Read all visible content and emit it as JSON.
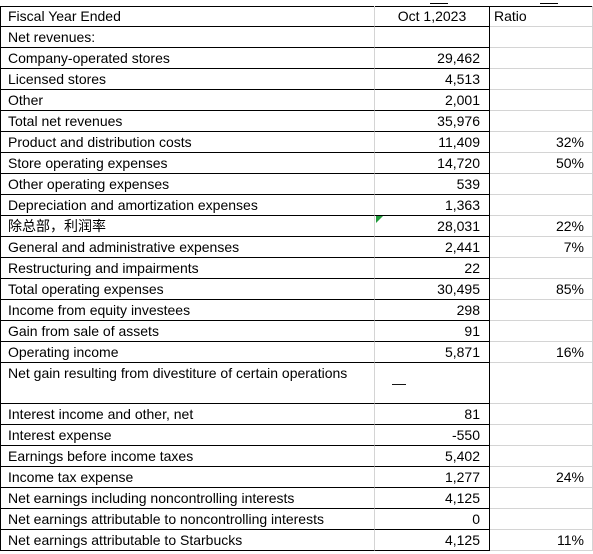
{
  "header": {
    "label": "Fiscal Year Ended",
    "period": "Oct 1,2023",
    "ratio": "Ratio"
  },
  "rows": [
    {
      "label": "Net revenues:",
      "value": "",
      "ratio": ""
    },
    {
      "label": "Company-operated stores",
      "value": "29,462",
      "ratio": ""
    },
    {
      "label": "Licensed stores",
      "value": "4,513",
      "ratio": ""
    },
    {
      "label": "Other",
      "value": "2,001",
      "ratio": ""
    },
    {
      "label": "Total net revenues",
      "value": "35,976",
      "ratio": ""
    },
    {
      "label": "Product and distribution costs",
      "value": "11,409",
      "ratio": "32%"
    },
    {
      "label": "Store operating expenses",
      "value": "14,720",
      "ratio": "50%"
    },
    {
      "label": "Other operating expenses",
      "value": "539",
      "ratio": ""
    },
    {
      "label": "Depreciation and amortization expenses",
      "value": "1,363",
      "ratio": ""
    },
    {
      "label": "除总部，利润率",
      "value": "28,031",
      "ratio": "22%"
    },
    {
      "label": "General and administrative expenses",
      "value": "2,441",
      "ratio": "7%"
    },
    {
      "label": "Restructuring and impairments",
      "value": "22",
      "ratio": ""
    },
    {
      "label": "Total operating expenses",
      "value": "30,495",
      "ratio": "85%"
    },
    {
      "label": "Income from equity investees",
      "value": "298",
      "ratio": ""
    },
    {
      "label": "Gain from sale of assets",
      "value": "91",
      "ratio": ""
    },
    {
      "label": "Operating income",
      "value": "5,871",
      "ratio": "16%"
    },
    {
      "label": "Net gain resulting from divestiture of certain operations",
      "value": "—",
      "ratio": ""
    },
    {
      "label": "Interest income and other, net",
      "value": "81",
      "ratio": ""
    },
    {
      "label": "Interest expense",
      "value": "-550",
      "ratio": ""
    },
    {
      "label": "Earnings before income taxes",
      "value": "5,402",
      "ratio": ""
    },
    {
      "label": "Income tax expense",
      "value": "1,277",
      "ratio": "24%"
    },
    {
      "label": "Net earnings including noncontrolling interests",
      "value": "4,125",
      "ratio": ""
    },
    {
      "label": "Net earnings attributable to noncontrolling interests",
      "value": "0",
      "ratio": ""
    },
    {
      "label": "Net earnings attributable to Starbucks",
      "value": "4,125",
      "ratio": "11%"
    }
  ]
}
